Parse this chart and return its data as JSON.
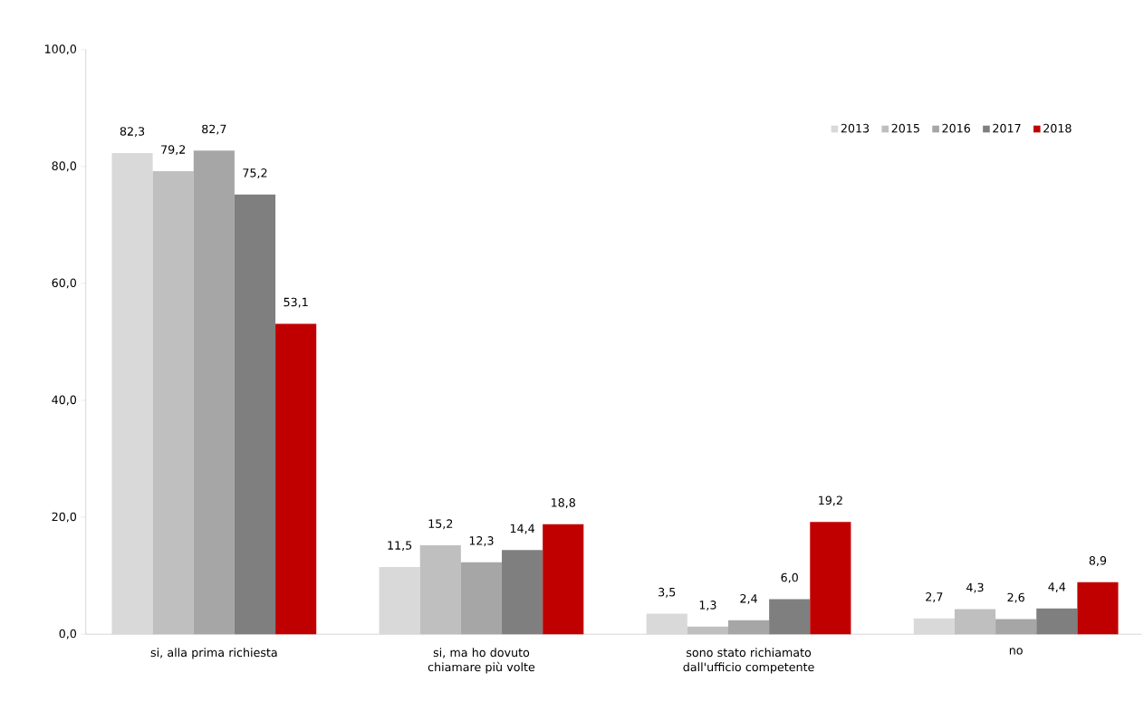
{
  "chart_data": {
    "type": "bar",
    "categories": [
      "si, alla prima richiesta",
      "si, ma ho dovuto chiamare più volte",
      "sono stato richiamato dall'ufficio competente",
      "no"
    ],
    "series": [
      {
        "name": "2013",
        "color": "#d9d9d9",
        "values": [
          82.3,
          11.5,
          3.5,
          2.7
        ],
        "value_labels": [
          "82,3",
          "11,5",
          "3,5",
          "2,7"
        ]
      },
      {
        "name": "2015",
        "color": "#bfbfbf",
        "values": [
          79.2,
          15.2,
          1.3,
          4.3
        ],
        "value_labels": [
          "79,2",
          "15,2",
          "1,3",
          "4,3"
        ]
      },
      {
        "name": "2016",
        "color": "#a6a6a6",
        "values": [
          82.7,
          12.3,
          2.4,
          2.6
        ],
        "value_labels": [
          "82,7",
          "12,3",
          "2,4",
          "2,6"
        ]
      },
      {
        "name": "2017",
        "color": "#7f7f7f",
        "values": [
          75.2,
          14.4,
          6.0,
          4.4
        ],
        "value_labels": [
          "75,2",
          "14,4",
          "6,0",
          "4,4"
        ]
      },
      {
        "name": "2018",
        "color": "#c00000",
        "values": [
          53.1,
          18.8,
          19.2,
          8.9
        ],
        "value_labels": [
          "53,1",
          "18,8",
          "19,2",
          "8,9"
        ]
      }
    ],
    "ylim": [
      0,
      100
    ],
    "yticks": [
      {
        "value": 0,
        "label": "0,0"
      },
      {
        "value": 20,
        "label": "20,0"
      },
      {
        "value": 40,
        "label": "40,0"
      },
      {
        "value": 60,
        "label": "60,0"
      },
      {
        "value": 80,
        "label": "80,0"
      },
      {
        "value": 100,
        "label": "100,0"
      }
    ],
    "grid": false,
    "legend": "top right"
  }
}
